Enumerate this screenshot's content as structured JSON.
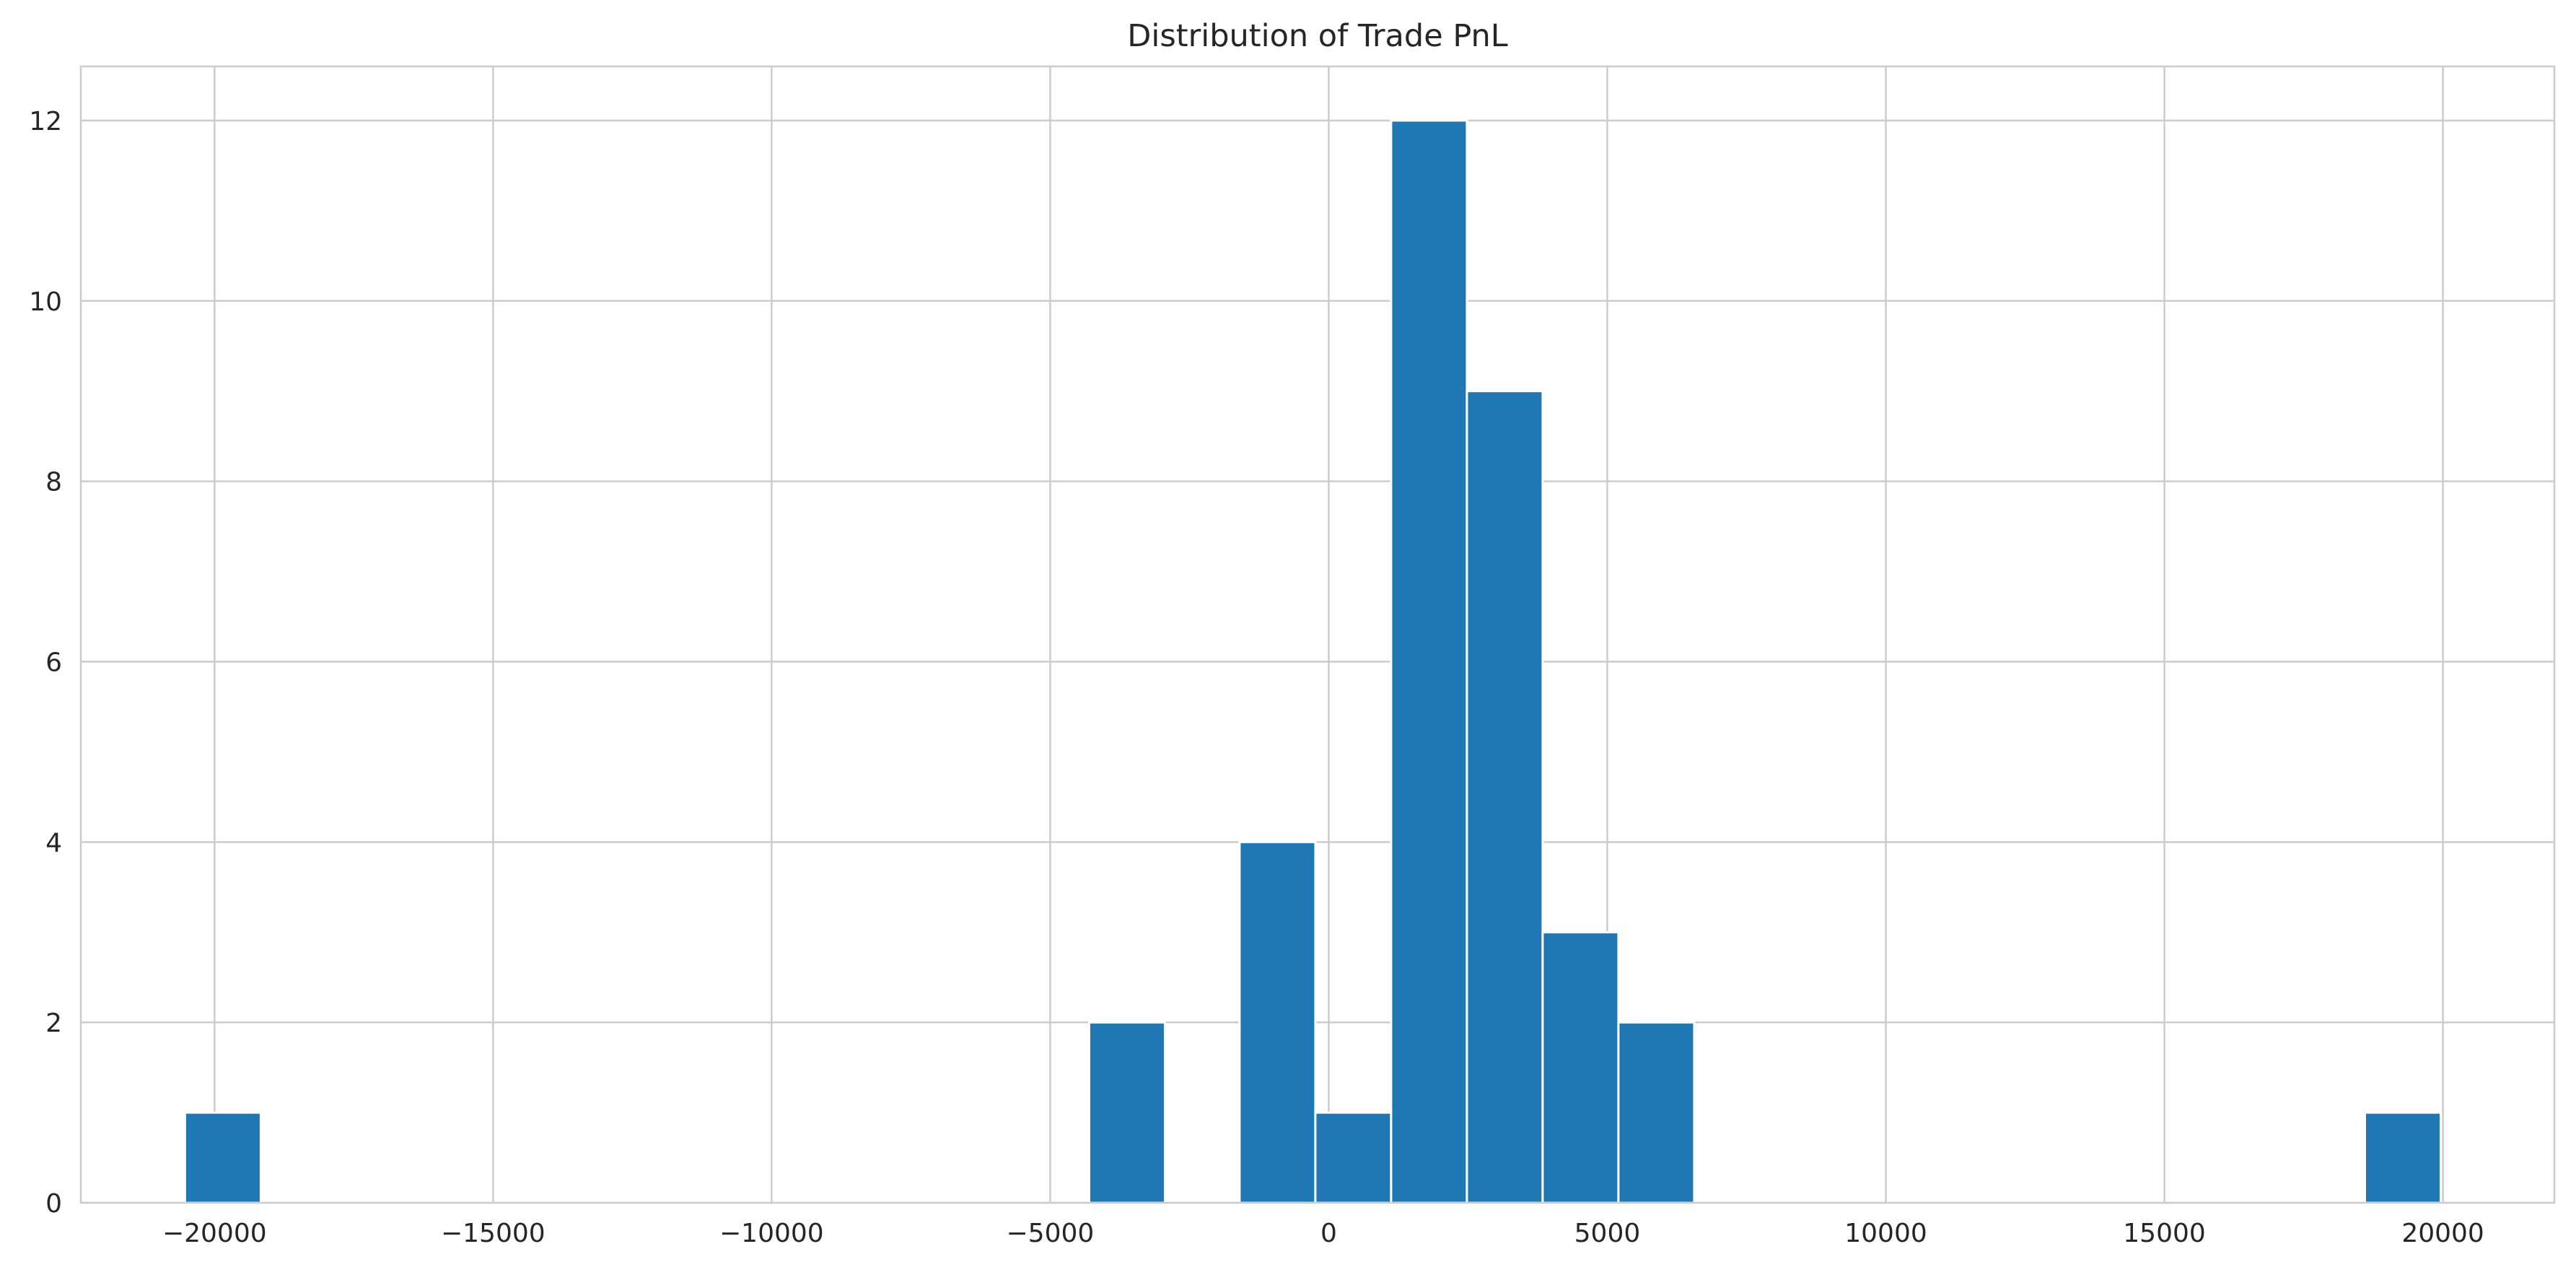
{
  "chart_data": {
    "type": "histogram",
    "title": "Distribution of Trade PnL",
    "xlabel": "",
    "ylabel": "",
    "xlim": [
      -22400,
      22000
    ],
    "ylim": [
      0,
      12.6
    ],
    "xticks": [
      -20000,
      -15000,
      -10000,
      -5000,
      0,
      5000,
      10000,
      15000,
      20000
    ],
    "xtick_labels": [
      "−20000",
      "−15000",
      "−10000",
      "−5000",
      "0",
      "5000",
      "10000",
      "15000",
      "20000"
    ],
    "yticks": [
      0,
      2,
      4,
      6,
      8,
      10,
      12
    ],
    "ytick_labels": [
      "0",
      "2",
      "4",
      "6",
      "8",
      "10",
      "12"
    ],
    "grid": true,
    "legend": "none",
    "bar_color": "#1f77b4",
    "grid_color": "#cccccc",
    "bins": [
      {
        "x0": -20530,
        "x1": -19170,
        "count": 1
      },
      {
        "x0": -4300,
        "x1": -2940,
        "count": 2
      },
      {
        "x0": -1600,
        "x1": -240,
        "count": 4
      },
      {
        "x0": -240,
        "x1": 1120,
        "count": 1
      },
      {
        "x0": 1120,
        "x1": 2480,
        "count": 12
      },
      {
        "x0": 2480,
        "x1": 3840,
        "count": 9
      },
      {
        "x0": 3840,
        "x1": 5200,
        "count": 3
      },
      {
        "x0": 5200,
        "x1": 6560,
        "count": 2
      },
      {
        "x0": 18600,
        "x1": 19960,
        "count": 1
      }
    ]
  }
}
